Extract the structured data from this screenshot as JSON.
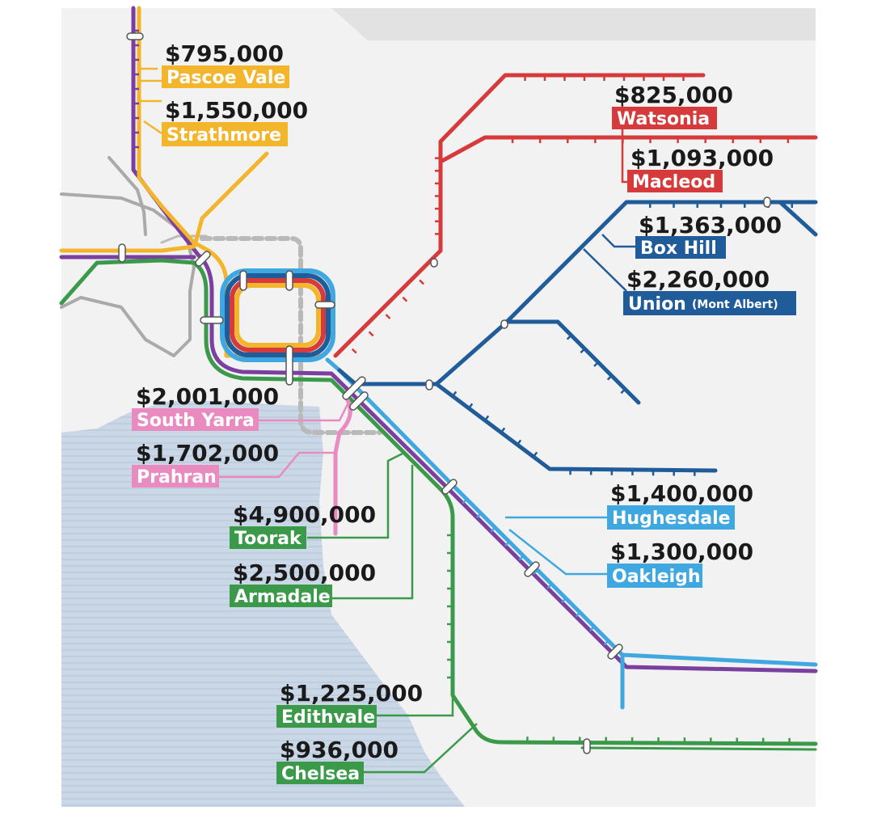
{
  "colors": {
    "page": "#ffffff",
    "land": "#f2f2f2",
    "water": "#c9d7e6",
    "water_stripe": "#bccbdc",
    "upfield": "#f2b52b",
    "craigieburn": "#7b3fa0",
    "hurstbridge": "#d63a3a",
    "belgrave": "#1f5c99",
    "pakenham": "#40a8e0",
    "frankston": "#3a9a4a",
    "sandringham": "#e98ac0",
    "other": "#aaaaaa",
    "label_text": "#ffffff",
    "price_text": "#1a1a1a"
  },
  "stations": [
    {
      "id": "pascoe-vale",
      "price": "$795,000",
      "name": "Pascoe Vale",
      "color": "#f2b52b"
    },
    {
      "id": "strathmore",
      "price": "$1,550,000",
      "name": "Strathmore",
      "color": "#f2b52b"
    },
    {
      "id": "watsonia",
      "price": "$825,000",
      "name": "Watsonia",
      "color": "#d63a3a"
    },
    {
      "id": "macleod",
      "price": "$1,093,000",
      "name": "Macleod",
      "color": "#d63a3a"
    },
    {
      "id": "box-hill",
      "price": "$1,363,000",
      "name": "Box Hill",
      "color": "#1f5c99"
    },
    {
      "id": "union",
      "price": "$2,260,000",
      "name": "Union",
      "subname": "(Mont Albert)",
      "color": "#1f5c99"
    },
    {
      "id": "south-yarra",
      "price": "$2,001,000",
      "name": "South Yarra",
      "color": "#e98ac0"
    },
    {
      "id": "prahran",
      "price": "$1,702,000",
      "name": "Prahran",
      "color": "#e98ac0"
    },
    {
      "id": "toorak",
      "price": "$4,900,000",
      "name": "Toorak",
      "color": "#3a9a4a"
    },
    {
      "id": "armadale",
      "price": "$2,500,000",
      "name": "Armadale",
      "color": "#3a9a4a"
    },
    {
      "id": "hughesdale",
      "price": "$1,400,000",
      "name": "Hughesdale",
      "color": "#40a8e0"
    },
    {
      "id": "oakleigh",
      "price": "$1,300,000",
      "name": "Oakleigh",
      "color": "#40a8e0"
    },
    {
      "id": "edithvale",
      "price": "$1,225,000",
      "name": "Edithvale",
      "color": "#3a9a4a"
    },
    {
      "id": "chelsea",
      "price": "$936,000",
      "name": "Chelsea",
      "color": "#3a9a4a"
    }
  ]
}
